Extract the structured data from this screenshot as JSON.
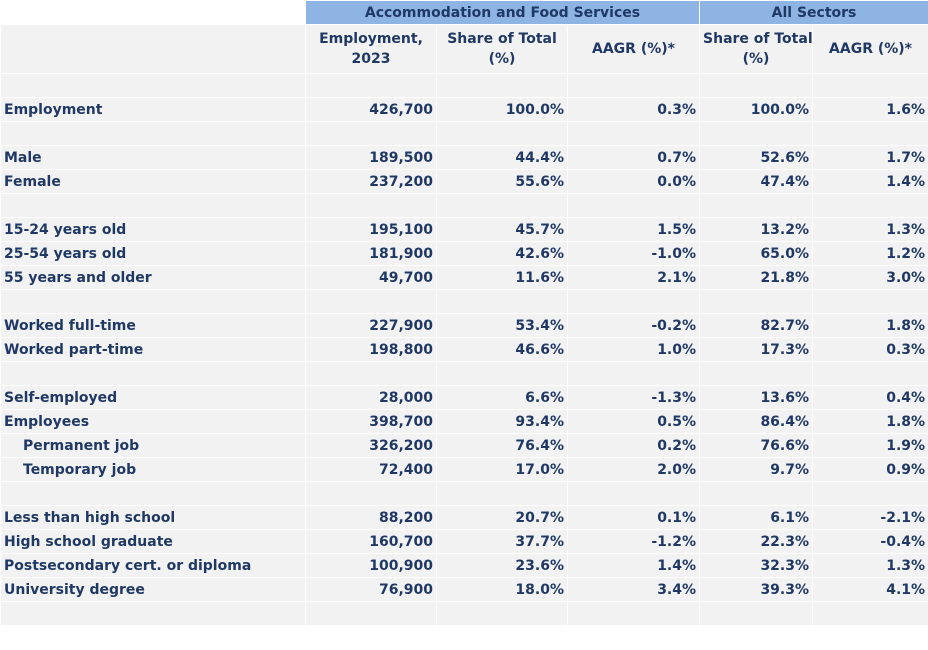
{
  "header": {
    "group1": "Accommodation and Food Services",
    "group2": "All Sectors",
    "columns": [
      {
        "line1": "Employment,",
        "line2": "2023"
      },
      {
        "line1": "Share of Total",
        "line2": "(%)"
      },
      {
        "line1": "AAGR (%)*",
        "line2": ""
      },
      {
        "line1": "Share of Total",
        "line2": "(%)"
      },
      {
        "line1": "AAGR (%)*",
        "line2": ""
      }
    ]
  },
  "colors": {
    "header_bg": "#8EB4E3",
    "row_bg": "#F2F2F2",
    "text": "#1F3864"
  },
  "rows": [
    {
      "type": "spacer"
    },
    {
      "type": "data",
      "label": "Employment",
      "values": [
        "426,700",
        "100.0%",
        "0.3%",
        "100.0%",
        "1.6%"
      ]
    },
    {
      "type": "spacer"
    },
    {
      "type": "data",
      "label": "Male",
      "values": [
        "189,500",
        "44.4%",
        "0.7%",
        "52.6%",
        "1.7%"
      ]
    },
    {
      "type": "data",
      "label": "Female",
      "values": [
        "237,200",
        "55.6%",
        "0.0%",
        "47.4%",
        "1.4%"
      ]
    },
    {
      "type": "spacer"
    },
    {
      "type": "data",
      "label": "15-24 years old",
      "values": [
        "195,100",
        "45.7%",
        "1.5%",
        "13.2%",
        "1.3%"
      ]
    },
    {
      "type": "data",
      "label": "25-54 years old",
      "values": [
        "181,900",
        "42.6%",
        "-1.0%",
        "65.0%",
        "1.2%"
      ]
    },
    {
      "type": "data",
      "label": "55 years and older",
      "values": [
        "49,700",
        "11.6%",
        "2.1%",
        "21.8%",
        "3.0%"
      ]
    },
    {
      "type": "spacer"
    },
    {
      "type": "data",
      "label": "Worked full-time",
      "values": [
        "227,900",
        "53.4%",
        "-0.2%",
        "82.7%",
        "1.8%"
      ]
    },
    {
      "type": "data",
      "label": "Worked part-time",
      "values": [
        "198,800",
        "46.6%",
        "1.0%",
        "17.3%",
        "0.3%"
      ]
    },
    {
      "type": "spacer"
    },
    {
      "type": "data",
      "label": "Self-employed",
      "values": [
        "28,000",
        "6.6%",
        "-1.3%",
        "13.6%",
        "0.4%"
      ]
    },
    {
      "type": "data",
      "label": "Employees",
      "values": [
        "398,700",
        "93.4%",
        "0.5%",
        "86.4%",
        "1.8%"
      ]
    },
    {
      "type": "data",
      "label": "Permanent job",
      "indent": true,
      "values": [
        "326,200",
        "76.4%",
        "0.2%",
        "76.6%",
        "1.9%"
      ]
    },
    {
      "type": "data",
      "label": "Temporary job",
      "indent": true,
      "values": [
        "72,400",
        "17.0%",
        "2.0%",
        "9.7%",
        "0.9%"
      ]
    },
    {
      "type": "spacer"
    },
    {
      "type": "data",
      "label": "Less than high school",
      "values": [
        "88,200",
        "20.7%",
        "0.1%",
        "6.1%",
        "-2.1%"
      ]
    },
    {
      "type": "data",
      "label": "High school graduate",
      "values": [
        "160,700",
        "37.7%",
        "-1.2%",
        "22.3%",
        "-0.4%"
      ]
    },
    {
      "type": "data",
      "label": "Postsecondary cert. or diploma",
      "values": [
        "100,900",
        "23.6%",
        "1.4%",
        "32.3%",
        "1.3%"
      ]
    },
    {
      "type": "data",
      "label": "University degree",
      "values": [
        "76,900",
        "18.0%",
        "3.4%",
        "39.3%",
        "4.1%"
      ]
    },
    {
      "type": "spacer"
    }
  ]
}
